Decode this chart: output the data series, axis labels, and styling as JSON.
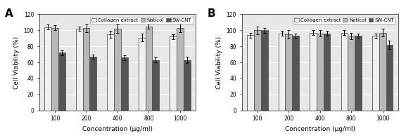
{
  "A": {
    "label": "A",
    "categories": [
      "100",
      "200",
      "400",
      "800",
      "1000"
    ],
    "collagen_extract": [
      104,
      102,
      95,
      91,
      92
    ],
    "collagen_extract_err": [
      3,
      3,
      4,
      5,
      3
    ],
    "naticol": [
      103,
      103,
      102,
      105,
      103
    ],
    "naticol_err": [
      3,
      5,
      5,
      3,
      5
    ],
    "swcnt": [
      72,
      67,
      66,
      63,
      63
    ],
    "swcnt_err": [
      3,
      3,
      3,
      3,
      4
    ]
  },
  "B": {
    "label": "B",
    "categories": [
      "100",
      "200",
      "400",
      "800",
      "1000"
    ],
    "collagen_extract": [
      94,
      96,
      97,
      97,
      93
    ],
    "collagen_extract_err": [
      3,
      3,
      3,
      3,
      3
    ],
    "naticol": [
      100,
      95,
      96,
      93,
      97
    ],
    "naticol_err": [
      5,
      5,
      4,
      4,
      5
    ],
    "swcnt": [
      100,
      93,
      96,
      93,
      82
    ],
    "swcnt_err": [
      3,
      3,
      3,
      3,
      5
    ]
  },
  "color_collagen": "#f0f0f0",
  "color_naticol": "#b8b8b8",
  "color_swcnt": "#555555",
  "edgecolor": "#555555",
  "bg_color": "#e8e8e8",
  "ylabel": "Cell Viability (%)",
  "xlabel": "Concentration (μg/ml)",
  "ylim": [
    0,
    120
  ],
  "yticks": [
    0,
    20,
    40,
    60,
    80,
    100,
    120
  ],
  "legend_labels": [
    "Collagen extract",
    "Naticol",
    "SW-CNT"
  ],
  "bar_width": 0.22,
  "label_font_size": 6.5,
  "tick_font_size": 5.5,
  "legend_font_size": 5.0,
  "panel_label_size": 11
}
